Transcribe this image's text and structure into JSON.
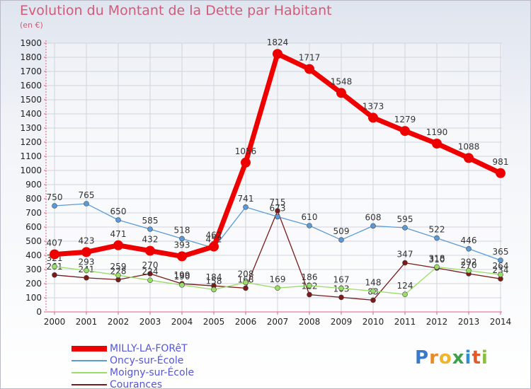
{
  "chart_data": {
    "type": "line",
    "title": "Evolution du Montant de la Dette par Habitant",
    "subtitle": "(en €)",
    "xlabel": "",
    "ylabel": "",
    "ylim": [
      0,
      1900
    ],
    "yticks": [
      0,
      100,
      200,
      300,
      400,
      500,
      600,
      700,
      800,
      900,
      1000,
      1100,
      1200,
      1300,
      1400,
      1500,
      1600,
      1700,
      1800,
      1900
    ],
    "categories": [
      "2000",
      "2001",
      "2002",
      "2003",
      "2004",
      "2005",
      "2006",
      "2007",
      "2008",
      "2009",
      "2010",
      "2011",
      "2012",
      "2013",
      "2014"
    ],
    "grid": true,
    "legend_position": "bottom-left",
    "series": [
      {
        "name": "MILLY-LA-FORêT",
        "color": "#ee0000",
        "values": [
          407,
          423,
          471,
          432,
          393,
          462,
          1056,
          1824,
          1717,
          1548,
          1373,
          1279,
          1190,
          1088,
          981
        ]
      },
      {
        "name": "Oncy-sur-École",
        "color": "#5a9ad8",
        "values": [
          750,
          765,
          650,
          585,
          518,
          452,
          741,
          673,
          610,
          509,
          608,
          595,
          522,
          446,
          365
        ]
      },
      {
        "name": "Moigny-sur-École",
        "color": "#99dd66",
        "values": [
          321,
          293,
          259,
          224,
          190,
          158,
          208,
          169,
          186,
          167,
          148,
          124,
          318,
          292,
          264
        ]
      },
      {
        "name": "Courances",
        "color": "#7a1a1a",
        "values": [
          261,
          241,
          228,
          270,
          199,
          184,
          168,
          715,
          122,
          103,
          83,
          347,
          310,
          270,
          234
        ]
      }
    ]
  },
  "logo": {
    "letters": [
      "P",
      "r",
      "o",
      "x",
      "i",
      "t",
      "i"
    ]
  }
}
